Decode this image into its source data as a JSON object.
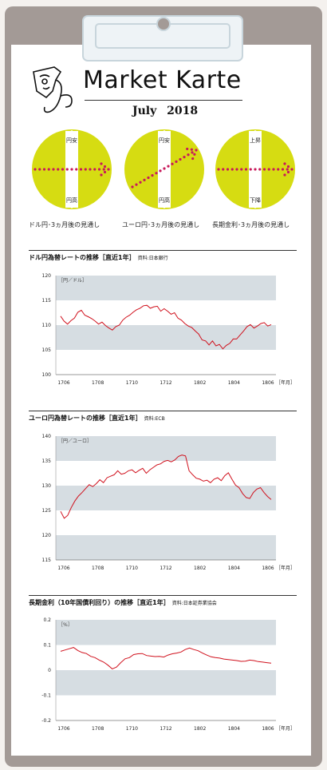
{
  "header": {
    "title": "Market Karte",
    "month": "July",
    "year": "2018"
  },
  "colors": {
    "dial": "#d6dc12",
    "arrow": "#c8195a",
    "band": "#d6dde2",
    "line": "#d0101c"
  },
  "icon": "face-stethoscope-icon",
  "dials": [
    {
      "top_label": "円安",
      "bottom_label": "円高",
      "caption": "ドル円･3ヵ月後の見通し",
      "direction": "flat"
    },
    {
      "top_label": "円安",
      "bottom_label": "円高",
      "caption": "ユーロ円･3ヵ月後の見通し",
      "direction": "up"
    },
    {
      "top_label": "上昇",
      "bottom_label": "下降",
      "caption": "長期金利･3ヵ月後の見通し",
      "direction": "flat"
    }
  ],
  "chart_data": [
    {
      "type": "line",
      "title": "ドル円為替レートの推移［直近1年］",
      "source": "資料:日本銀行",
      "unit": "［円／ドル］",
      "x_unit": "［年月］",
      "ylim": [
        100,
        120
      ],
      "yticks": [
        "120",
        "115",
        "110",
        "105",
        "100"
      ],
      "xticks": [
        "1706",
        "1708",
        "1710",
        "1712",
        "1802",
        "1804",
        "1806"
      ],
      "series": [
        {
          "values": [
            111.8,
            110.8,
            110.2,
            110.9,
            111.4,
            112.6,
            113.0,
            112.0,
            111.7,
            111.3,
            110.8,
            110.2,
            110.6,
            109.9,
            109.4,
            109.0,
            109.7,
            110.0,
            111.0,
            111.6,
            112.0,
            112.6,
            113.1,
            113.4,
            113.9,
            114.0,
            113.4,
            113.7,
            113.8,
            112.8,
            113.3,
            112.8,
            112.2,
            112.5,
            111.4,
            111.0,
            110.3,
            109.8,
            109.5,
            108.8,
            108.2,
            107.0,
            106.8,
            106.0,
            106.8,
            105.8,
            106.1,
            105.2,
            105.9,
            106.3,
            107.2,
            107.2,
            108.0,
            108.8,
            109.7,
            110.1,
            109.4,
            109.8,
            110.3,
            110.5,
            109.8,
            110.1
          ]
        }
      ]
    },
    {
      "type": "line",
      "title": "ユーロ円為替レートの推移［直近1年］",
      "source": "資料:ECB",
      "unit": "［円／ユーロ］",
      "x_unit": "［年月］",
      "ylim": [
        115,
        140
      ],
      "yticks": [
        "140",
        "135",
        "130",
        "125",
        "120",
        "115"
      ],
      "xticks": [
        "1706",
        "1708",
        "1710",
        "1712",
        "1802",
        "1804",
        "1806"
      ],
      "series": [
        {
          "values": [
            124.8,
            123.4,
            124.0,
            125.6,
            126.9,
            127.9,
            128.6,
            129.4,
            130.2,
            129.8,
            130.4,
            131.2,
            130.6,
            131.6,
            131.9,
            132.2,
            133.0,
            132.3,
            132.5,
            133.0,
            133.2,
            132.6,
            133.1,
            133.5,
            132.5,
            133.2,
            133.7,
            134.2,
            134.4,
            134.9,
            135.1,
            134.8,
            135.2,
            135.9,
            136.2,
            136.0,
            133.0,
            132.2,
            131.5,
            131.3,
            130.9,
            131.1,
            130.6,
            131.3,
            131.6,
            131.0,
            132.0,
            132.6,
            131.3,
            130.1,
            129.6,
            128.4,
            127.6,
            127.4,
            128.6,
            129.3,
            129.6,
            128.6,
            127.8,
            127.2
          ]
        }
      ]
    },
    {
      "type": "line",
      "title": "長期金利（10年国債利回り）の推移［直近1年］",
      "source": "資料:日本証券業協会",
      "unit": "［%］",
      "x_unit": "［年月］",
      "ylim": [
        -0.2,
        0.2
      ],
      "yticks": [
        "0.2",
        "0.1",
        "0",
        "-0.1",
        "-0.2"
      ],
      "xticks": [
        "1706",
        "1708",
        "1710",
        "1712",
        "1802",
        "1804",
        "1806"
      ],
      "series": [
        {
          "values": [
            0.075,
            0.08,
            0.085,
            0.09,
            0.078,
            0.07,
            0.066,
            0.055,
            0.05,
            0.04,
            0.032,
            0.02,
            0.005,
            0.012,
            0.03,
            0.045,
            0.05,
            0.062,
            0.065,
            0.066,
            0.058,
            0.056,
            0.054,
            0.055,
            0.052,
            0.06,
            0.065,
            0.068,
            0.072,
            0.082,
            0.088,
            0.082,
            0.077,
            0.068,
            0.06,
            0.053,
            0.05,
            0.048,
            0.044,
            0.042,
            0.04,
            0.038,
            0.035,
            0.036,
            0.04,
            0.038,
            0.034,
            0.032,
            0.03,
            0.028
          ]
        }
      ]
    }
  ]
}
